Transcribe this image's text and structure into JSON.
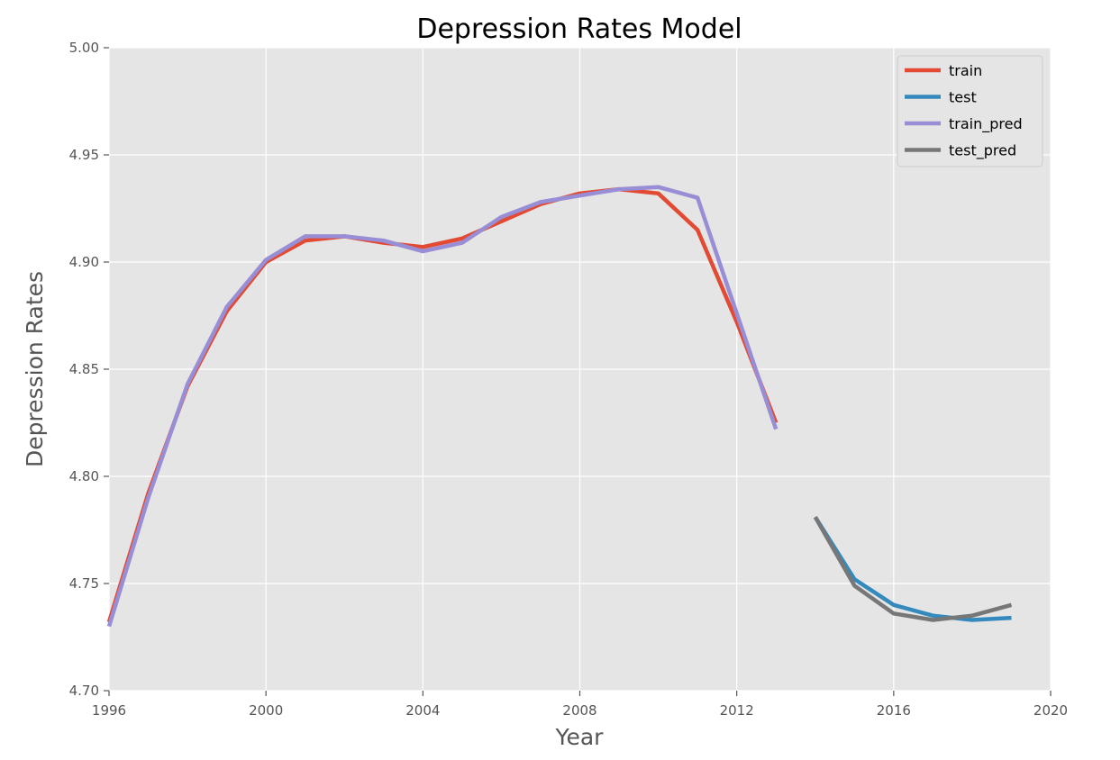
{
  "chart_data": {
    "type": "line",
    "title": "Depression Rates Model",
    "xlabel": "Year",
    "ylabel": "Depression Rates",
    "xlim": [
      1996,
      2020
    ],
    "ylim": [
      4.7,
      5.0
    ],
    "xticks": [
      1996,
      2000,
      2004,
      2008,
      2012,
      2016,
      2020
    ],
    "xtick_labels": [
      "1996",
      "2000",
      "2004",
      "2008",
      "2012",
      "2016",
      "2020"
    ],
    "yticks": [
      4.7,
      4.75,
      4.8,
      4.85,
      4.9,
      4.95,
      5.0
    ],
    "ytick_labels": [
      "4.70",
      "4.75",
      "4.80",
      "4.85",
      "4.90",
      "4.95",
      "5.00"
    ],
    "grid": true,
    "legend_position": "top-right",
    "series": [
      {
        "name": "train",
        "color": "#E24A33",
        "x": [
          1996,
          1997,
          1998,
          1999,
          2000,
          2001,
          2002,
          2003,
          2004,
          2005,
          2006,
          2007,
          2008,
          2009,
          2010,
          2011,
          2012,
          2013
        ],
        "y": [
          4.732,
          4.792,
          4.842,
          4.877,
          4.9,
          4.91,
          4.912,
          4.909,
          4.907,
          4.911,
          4.919,
          4.927,
          4.932,
          4.934,
          4.932,
          4.915,
          4.872,
          4.825
        ]
      },
      {
        "name": "test",
        "color": "#348ABD",
        "x": [
          2014,
          2015,
          2016,
          2017,
          2018,
          2019
        ],
        "y": [
          4.781,
          4.752,
          4.74,
          4.735,
          4.733,
          4.734
        ]
      },
      {
        "name": "train_pred",
        "color": "#988ED5",
        "x": [
          1996,
          1997,
          1998,
          1999,
          2000,
          2001,
          2002,
          2003,
          2004,
          2005,
          2006,
          2007,
          2008,
          2009,
          2010,
          2011,
          2012,
          2013
        ],
        "y": [
          4.73,
          4.79,
          4.843,
          4.879,
          4.901,
          4.912,
          4.912,
          4.91,
          4.905,
          4.909,
          4.921,
          4.928,
          4.931,
          4.934,
          4.935,
          4.93,
          4.876,
          4.822
        ]
      },
      {
        "name": "test_pred",
        "color": "#777777",
        "x": [
          2014,
          2015,
          2016,
          2017,
          2018,
          2019
        ],
        "y": [
          4.781,
          4.749,
          4.736,
          4.733,
          4.735,
          4.74
        ]
      }
    ]
  }
}
